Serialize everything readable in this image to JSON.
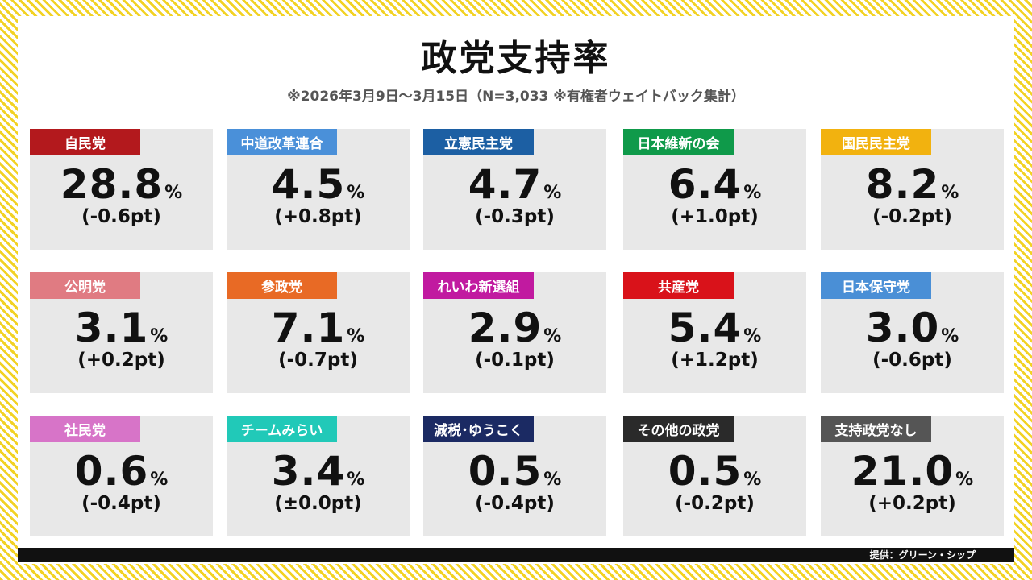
{
  "title": "政党支持率",
  "subtitle": "※2026年3月9日〜3月15日（N=3,033 ※有権者ウェイトバック集計）",
  "percent_sign": "%",
  "parties": [
    {
      "name": "自民党",
      "value": "28.8",
      "change": "(-0.6pt)",
      "color": "#b3191d"
    },
    {
      "name": "中道改革連合",
      "value": "4.5",
      "change": "(+0.8pt)",
      "color": "#4a90d9"
    },
    {
      "name": "立憲民主党",
      "value": "4.7",
      "change": "(-0.3pt)",
      "color": "#1c5fa3"
    },
    {
      "name": "日本維新の会",
      "value": "6.4",
      "change": "(+1.0pt)",
      "color": "#0f9a4a"
    },
    {
      "name": "国民民主党",
      "value": "8.2",
      "change": "(-0.2pt)",
      "color": "#f2b20f"
    },
    {
      "name": "公明党",
      "value": "3.1",
      "change": "(+0.2pt)",
      "color": "#e07b82"
    },
    {
      "name": "参政党",
      "value": "7.1",
      "change": "(-0.7pt)",
      "color": "#e86a25"
    },
    {
      "name": "れいわ新選組",
      "value": "2.9",
      "change": "(-0.1pt)",
      "color": "#c11aa0"
    },
    {
      "name": "共産党",
      "value": "5.4",
      "change": "(+1.2pt)",
      "color": "#d9121a"
    },
    {
      "name": "日本保守党",
      "value": "3.0",
      "change": "(-0.6pt)",
      "color": "#4a8fd6"
    },
    {
      "name": "社民党",
      "value": "0.6",
      "change": "(-0.4pt)",
      "color": "#d774c8"
    },
    {
      "name": "チームみらい",
      "value": "3.4",
      "change": "(±0.0pt)",
      "color": "#21c9b8"
    },
    {
      "name": "減税･ゆうこく",
      "value": "0.5",
      "change": "(-0.4pt)",
      "color": "#1b2a63"
    },
    {
      "name": "その他の政党",
      "value": "0.5",
      "change": "(-0.2pt)",
      "color": "#2a2a2a"
    },
    {
      "name": "支持政党なし",
      "value": "21.0",
      "change": "(+0.2pt)",
      "color": "#555555"
    }
  ],
  "footer": {
    "credit": "提供：グリーン・シップ"
  }
}
